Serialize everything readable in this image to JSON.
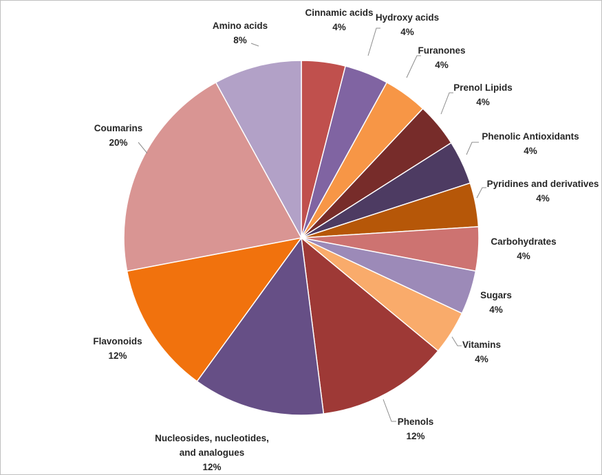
{
  "chart_data": {
    "type": "pie",
    "title": "",
    "start_angle_deg": 0,
    "direction": "clockwise",
    "slices": [
      {
        "label": "Cinnamic acids",
        "value": 4,
        "pct_label": "4%",
        "color": "#C0504D"
      },
      {
        "label": "Hydroxy acids",
        "value": 4,
        "pct_label": "4%",
        "color": "#8064A2"
      },
      {
        "label": "Furanones",
        "value": 4,
        "pct_label": "4%",
        "color": "#F79646"
      },
      {
        "label": "Prenol Lipids",
        "value": 4,
        "pct_label": "4%",
        "color": "#772C2A"
      },
      {
        "label": "Phenolic Antioxidants",
        "value": 4,
        "pct_label": "4%",
        "color": "#4D3B62"
      },
      {
        "label": "Pyridines and derivatives",
        "value": 4,
        "pct_label": "4%",
        "color": "#B65708"
      },
      {
        "label": "Carbohydrates",
        "value": 4,
        "pct_label": "4%",
        "color": "#CD7371"
      },
      {
        "label": "Sugars",
        "value": 4,
        "pct_label": "4%",
        "color": "#9C8AB8"
      },
      {
        "label": "Vitamins",
        "value": 4,
        "pct_label": "4%",
        "color": "#F9AB6B"
      },
      {
        "label": "Phenols",
        "value": 12,
        "pct_label": "12%",
        "color": "#9E3936"
      },
      {
        "label": "Nucleosides, nucleotides, and analogues",
        "value": 12,
        "pct_label": "12%",
        "color": "#664F86"
      },
      {
        "label": "Flavonoids",
        "value": 12,
        "pct_label": "12%",
        "color": "#F1720D"
      },
      {
        "label": "Coumarins",
        "value": 20,
        "pct_label": "20%",
        "color": "#D99593"
      },
      {
        "label": "Amino acids",
        "value": 8,
        "pct_label": "8%",
        "color": "#B2A1C7"
      }
    ]
  }
}
